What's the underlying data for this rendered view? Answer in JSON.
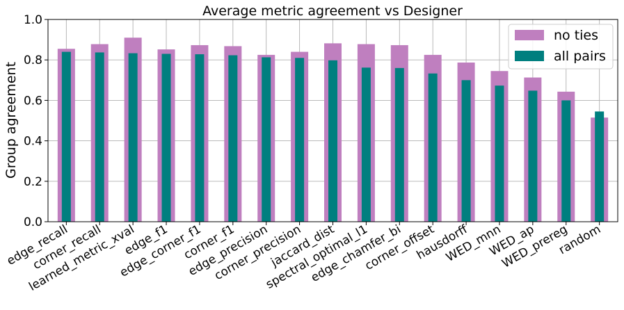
{
  "chart_data": {
    "type": "bar",
    "title": "Average metric agreement vs Designer",
    "xlabel": "",
    "ylabel": "Group agreement",
    "ylim": [
      0,
      1.0
    ],
    "yticks": [
      "0.0",
      "0.2",
      "0.4",
      "0.6",
      "0.8",
      "1.0"
    ],
    "grid": true,
    "legend_position": "top-right",
    "categories": [
      "edge_recall",
      "corner_recall",
      "learned_metric_xval",
      "edge_f1",
      "edge_corner_f1",
      "corner_f1",
      "edge_precision",
      "corner_precision",
      "jaccard_dist",
      "spectral_optimal_l1",
      "edge_chamfer_bi",
      "corner_offset",
      "hausdorff",
      "WED_mnn",
      "WED_ap",
      "WED_prereg",
      "random"
    ],
    "series": [
      {
        "name": "no ties",
        "color": "#bf7fbf",
        "values": [
          0.855,
          0.878,
          0.91,
          0.852,
          0.873,
          0.868,
          0.825,
          0.84,
          0.882,
          0.878,
          0.873,
          0.825,
          0.787,
          0.745,
          0.713,
          0.643,
          0.515
        ]
      },
      {
        "name": "all pairs",
        "color": "#007f7f",
        "values": [
          0.84,
          0.837,
          0.833,
          0.83,
          0.828,
          0.823,
          0.813,
          0.81,
          0.798,
          0.762,
          0.76,
          0.733,
          0.7,
          0.673,
          0.648,
          0.6,
          0.545
        ]
      }
    ]
  }
}
